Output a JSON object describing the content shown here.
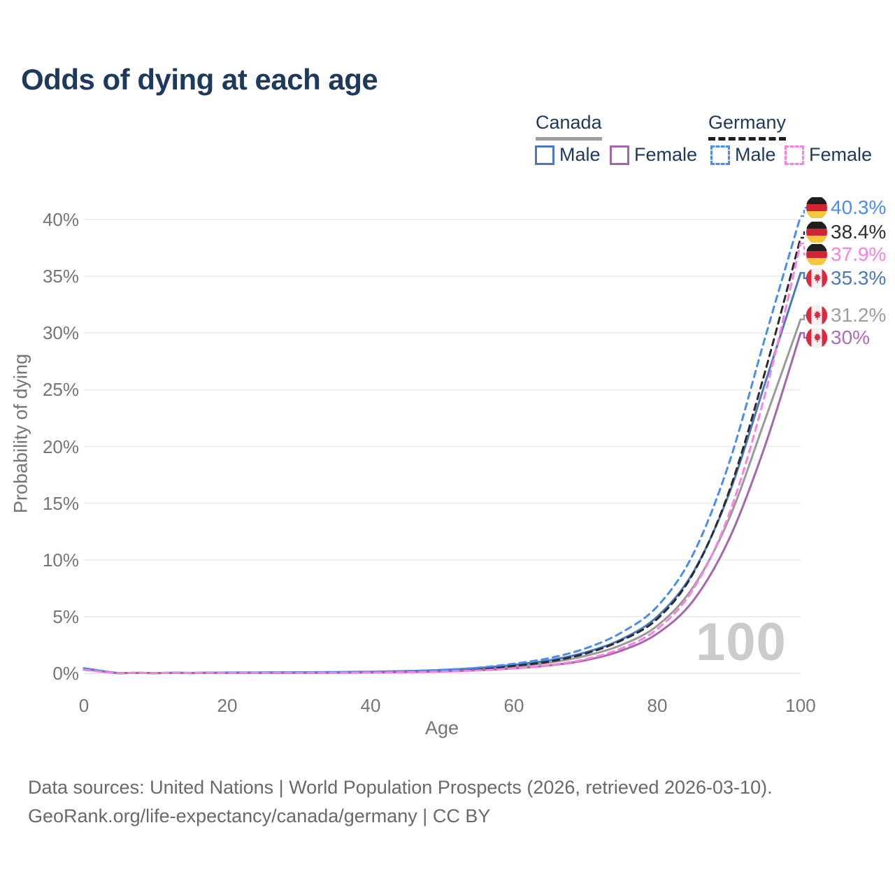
{
  "title": "Odds of dying at each age",
  "legend": {
    "groups": [
      {
        "name": "Canada",
        "line_style": "solid",
        "underline_color": "#9e9e9e",
        "items": [
          {
            "label": "Male",
            "color": "#4a78c2"
          },
          {
            "label": "Female",
            "color": "#a566ae"
          }
        ]
      },
      {
        "name": "Germany",
        "line_style": "dashed",
        "underline_color": "#1f1f1f",
        "items": [
          {
            "label": "Male",
            "color": "#4a8df0"
          },
          {
            "label": "Female",
            "color": "#fb80e4"
          }
        ]
      }
    ]
  },
  "chart_data": {
    "type": "line",
    "title": "Odds of dying at each age",
    "xlabel": "Age",
    "ylabel": "Probability of dying",
    "xlim": [
      0,
      100
    ],
    "ylim": [
      0,
      41
    ],
    "x_ticks": [
      0,
      20,
      40,
      60,
      80,
      100
    ],
    "y_ticks": [
      "0%",
      "5%",
      "10%",
      "15%",
      "20%",
      "25%",
      "30%",
      "35%",
      "40%"
    ],
    "grid": true,
    "legend_position": "top-right",
    "watermark": "100",
    "ages": [
      0,
      5,
      10,
      15,
      20,
      25,
      30,
      35,
      40,
      45,
      50,
      55,
      60,
      65,
      70,
      75,
      80,
      85,
      90,
      95,
      100
    ],
    "series": [
      {
        "name": "Canada Total",
        "country": "Canada",
        "flag": "canada-flag-icon",
        "color": "#9a9a9a",
        "dashed": false,
        "end_label": "31.2%",
        "end_value": 31.2,
        "values": [
          0.42,
          0.01,
          0.01,
          0.03,
          0.05,
          0.06,
          0.07,
          0.08,
          0.11,
          0.16,
          0.24,
          0.38,
          0.61,
          0.95,
          1.55,
          2.5,
          4.2,
          7.6,
          13.6,
          22.3,
          31.2
        ]
      },
      {
        "name": "Canada Male",
        "country": "Canada",
        "flag": "canada-flag-icon",
        "color": "#4a78c2",
        "dashed": false,
        "end_label": "35.3%",
        "end_value": 35.3,
        "values": [
          0.45,
          0.01,
          0.01,
          0.04,
          0.07,
          0.08,
          0.09,
          0.11,
          0.14,
          0.2,
          0.3,
          0.47,
          0.75,
          1.15,
          1.85,
          3.0,
          5.0,
          8.9,
          15.8,
          25.5,
          35.3
        ]
      },
      {
        "name": "Canada Female",
        "country": "Canada",
        "flag": "canada-flag-icon",
        "color": "#a566ae",
        "dashed": false,
        "end_label": "30%",
        "end_value": 30.0,
        "values": [
          0.38,
          0.01,
          0.01,
          0.02,
          0.03,
          0.03,
          0.04,
          0.05,
          0.07,
          0.11,
          0.17,
          0.27,
          0.44,
          0.7,
          1.15,
          2.0,
          3.5,
          6.4,
          11.8,
          20.0,
          30.0
        ]
      },
      {
        "name": "Germany Total",
        "country": "Germany",
        "flag": "germany-flag-icon",
        "color": "#2b2b2b",
        "dashed": true,
        "end_label": "38.4%",
        "end_value": 38.4,
        "values": [
          0.35,
          0.01,
          0.01,
          0.02,
          0.04,
          0.04,
          0.05,
          0.07,
          0.09,
          0.14,
          0.23,
          0.39,
          0.66,
          1.05,
          1.75,
          2.9,
          4.8,
          8.8,
          16.0,
          26.5,
          38.4
        ]
      },
      {
        "name": "Germany Male",
        "country": "Germany",
        "flag": "germany-flag-icon",
        "color": "#4a8df0",
        "dashed": true,
        "end_label": "40.3%",
        "end_value": 40.3,
        "values": [
          0.4,
          0.01,
          0.01,
          0.03,
          0.06,
          0.06,
          0.07,
          0.09,
          0.12,
          0.19,
          0.3,
          0.5,
          0.85,
          1.35,
          2.2,
          3.6,
          5.9,
          10.5,
          18.5,
          29.5,
          40.3
        ]
      },
      {
        "name": "Germany Female",
        "country": "Germany",
        "flag": "germany-flag-icon",
        "color": "#fb80e4",
        "dashed": true,
        "end_label": "37.9%",
        "end_value": 37.9,
        "values": [
          0.3,
          0.01,
          0.01,
          0.02,
          0.02,
          0.03,
          0.03,
          0.04,
          0.06,
          0.09,
          0.15,
          0.26,
          0.44,
          0.72,
          1.25,
          2.2,
          3.9,
          7.4,
          14.0,
          24.5,
          37.9
        ]
      }
    ],
    "end_label_colors": {
      "Canada Male": "#4a78c2",
      "Canada Female": "#ac6cbe",
      "Canada Total": "#9e9e9e",
      "Germany Male": "#4a8df0",
      "Germany Female": "#fb80e4",
      "Germany Total": "#2e2e2e"
    }
  },
  "footer": {
    "line1": "Data sources: United Nations | World Population Prospects (2026, retrieved 2026-03-10).",
    "line2": "GeoRank.org/life-expectancy/canada/germany | CC BY"
  },
  "flag_colors": {
    "germany": {
      "black": "#1f1f1d",
      "red": "#d22533",
      "gold": "#f2c83e"
    },
    "canada": {
      "red": "#d92b3f",
      "white": "#f2f2f2"
    }
  }
}
